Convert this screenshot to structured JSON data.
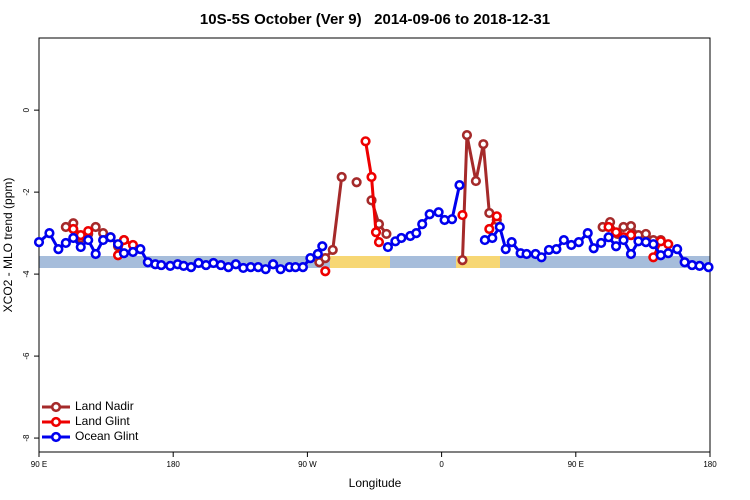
{
  "chart_data": {
    "type": "line",
    "title": "10S-5S October (Ver 9)   2014-09-06 to 2018-12-31",
    "x_label": "Longitude",
    "y_label": "XCO2 - MLO trend (ppm)",
    "xlim": [
      90,
      540
    ],
    "ylim": [
      -8.34,
      1.76
    ],
    "xticks": [
      {
        "value": 90,
        "label": "90 E"
      },
      180,
      {
        "value": 270,
        "label": "90 W"
      },
      {
        "value": 360,
        "label": "0"
      },
      {
        "value": 450,
        "label": "90 E"
      },
      {
        "value": 540,
        "label": "180"
      }
    ],
    "yticks": [
      0,
      -2,
      -4,
      -6,
      -8
    ],
    "legend": "bottom-left",
    "series": [
      {
        "name": "Land Nadir",
        "color": "#a52a2a",
        "x": [
          108,
          113,
          118,
          123,
          128,
          133,
          138,
          143,
          147,
          null,
          278,
          282,
          287,
          293,
          null,
          303,
          null,
          313,
          318,
          323,
          null,
          374,
          377,
          383,
          388,
          392,
          397,
          null,
          468,
          473,
          478,
          482,
          487,
          492,
          497,
          502,
          507
        ],
        "values": [
          -2.85,
          -2.76,
          -3.12,
          -3.02,
          -2.85,
          -3.0,
          -3.1,
          -3.32,
          -3.17,
          null,
          -3.71,
          -3.61,
          -3.41,
          -1.63,
          null,
          -1.76,
          null,
          -2.2,
          -2.78,
          -3.02,
          null,
          -3.66,
          -0.61,
          -1.73,
          -0.83,
          -2.51,
          -2.68,
          null,
          -2.85,
          -2.73,
          -3.02,
          -2.85,
          -2.83,
          -3.05,
          -3.02,
          -3.17,
          -3.17
        ]
      },
      {
        "name": "Land Glint",
        "color": "#ee0000",
        "x": [
          113,
          118,
          123,
          null,
          143,
          147,
          153,
          null,
          282,
          null,
          309,
          313,
          316,
          318,
          null,
          374,
          null,
          392,
          397,
          null,
          472,
          477,
          482,
          487,
          null,
          502,
          507,
          512
        ],
        "values": [
          -2.9,
          -3.05,
          -2.95,
          null,
          -3.54,
          -3.17,
          -3.29,
          null,
          -3.93,
          null,
          -0.76,
          -1.63,
          -2.98,
          -3.22,
          null,
          -2.56,
          null,
          -2.9,
          -2.59,
          null,
          -2.85,
          -2.98,
          -3.1,
          -3.05,
          null,
          -3.59,
          -3.2,
          -3.27
        ]
      },
      {
        "name": "Ocean Glint",
        "color": "#0000ee",
        "x": [
          90,
          97,
          103,
          108,
          113,
          118,
          123,
          128,
          133,
          138,
          143,
          147,
          153,
          158,
          163,
          168,
          172,
          178,
          183,
          187,
          192,
          197,
          202,
          207,
          212,
          217,
          222,
          227,
          232,
          237,
          242,
          247,
          252,
          258,
          262,
          267,
          272,
          277,
          280,
          null,
          324,
          329,
          333,
          339,
          343,
          347,
          352,
          358,
          362,
          367,
          372,
          null,
          389,
          394,
          399,
          403,
          407,
          413,
          417,
          423,
          427,
          432,
          437,
          442,
          447,
          452,
          458,
          462,
          467,
          472,
          477,
          482,
          487,
          492,
          497,
          502,
          507,
          512,
          518,
          523,
          528,
          533,
          539
        ],
        "values": [
          -3.22,
          -3.0,
          -3.39,
          -3.24,
          -3.12,
          -3.34,
          -3.17,
          -3.51,
          -3.17,
          -3.1,
          -3.27,
          -3.49,
          -3.46,
          -3.39,
          -3.71,
          -3.76,
          -3.78,
          -3.8,
          -3.76,
          -3.8,
          -3.83,
          -3.73,
          -3.78,
          -3.73,
          -3.78,
          -3.83,
          -3.76,
          -3.85,
          -3.83,
          -3.83,
          -3.88,
          -3.76,
          -3.88,
          -3.83,
          -3.83,
          -3.83,
          -3.61,
          -3.51,
          -3.32,
          null,
          -3.34,
          -3.2,
          -3.12,
          -3.07,
          -3.0,
          -2.78,
          -2.54,
          -2.49,
          -2.68,
          -2.66,
          -1.83,
          null,
          -3.17,
          -3.12,
          -2.85,
          -3.39,
          -3.22,
          -3.49,
          -3.51,
          -3.51,
          -3.59,
          -3.41,
          -3.39,
          -3.17,
          -3.29,
          -3.22,
          -3.0,
          -3.37,
          -3.24,
          -3.1,
          -3.32,
          -3.17,
          -3.51,
          -3.2,
          -3.22,
          -3.27,
          -3.54,
          -3.49,
          -3.39,
          -3.71,
          -3.78,
          -3.8,
          -3.83
        ]
      }
    ]
  }
}
